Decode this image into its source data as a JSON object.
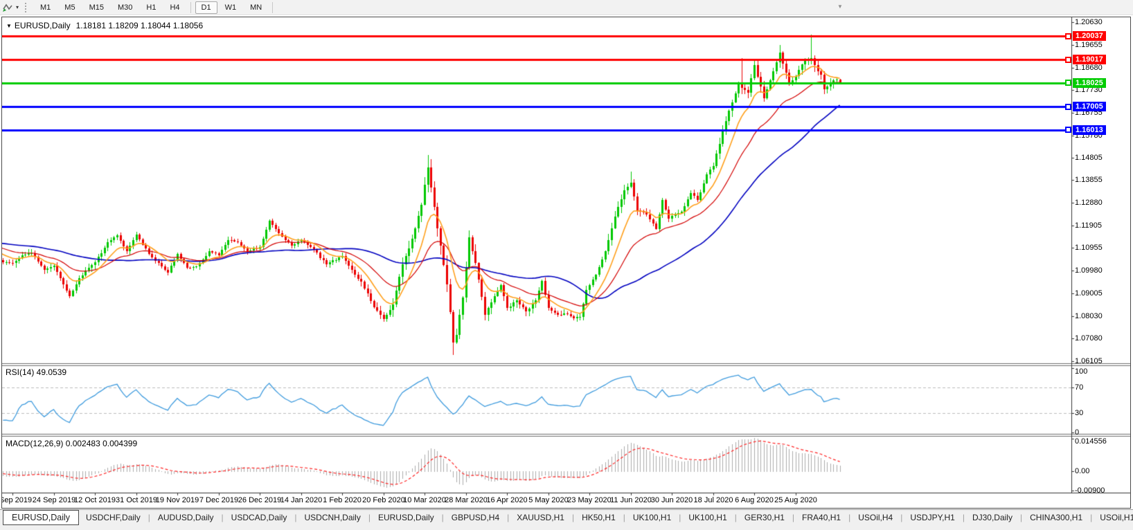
{
  "toolbar": {
    "dropdown_caret": "▾",
    "timeframes": [
      {
        "label": "M1",
        "active": false
      },
      {
        "label": "M5",
        "active": false
      },
      {
        "label": "M15",
        "active": false
      },
      {
        "label": "M30",
        "active": false
      },
      {
        "label": "H1",
        "active": false
      },
      {
        "label": "H4",
        "active": false
      },
      {
        "label": "D1",
        "active": true
      },
      {
        "label": "W1",
        "active": false
      },
      {
        "label": "MN",
        "active": false
      }
    ]
  },
  "chart": {
    "title": {
      "dropdown_marker": "▼",
      "symbol": "EURUSD,Daily",
      "ohlc": "1.18181 1.18209 1.18044 1.18056"
    },
    "scroll_marker": "▼"
  },
  "chart_data": {
    "type": "candlestick",
    "symbol": "EURUSD",
    "timeframe": "Daily",
    "ylim": [
      1.0601,
      1.2081
    ],
    "price_axis_labels": [
      "1.20630",
      "1.19655",
      "1.18680",
      "1.17730",
      "1.16755",
      "1.15780",
      "1.14805",
      "1.13855",
      "1.12880",
      "1.11905",
      "1.10955",
      "1.09980",
      "1.09005",
      "1.08030",
      "1.07080",
      "1.06105"
    ],
    "date_axis_labels": [
      "5 Sep 2019",
      "24 Sep 2019",
      "12 Oct 2019",
      "31 Oct 2019",
      "19 Nov 2019",
      "7 Dec 2019",
      "26 Dec 2019",
      "14 Jan 2020",
      "1 Feb 2020",
      "20 Feb 2020",
      "10 Mar 2020",
      "28 Mar 2020",
      "16 Apr 2020",
      "5 May 2020",
      "23 May 2020",
      "11 Jun 2020",
      "30 Jun 2020",
      "18 Jul 2020",
      "6 Aug 2020",
      "25 Aug 2020"
    ],
    "horizontal_lines": [
      {
        "price": 1.20037,
        "label": "1.20037",
        "color": "#FF0000"
      },
      {
        "price": 1.19017,
        "label": "1.19017",
        "color": "#FF0000"
      },
      {
        "price": 1.18025,
        "label": "1.18025",
        "color": "#00CC00"
      },
      {
        "price": 1.17005,
        "label": "1.17005",
        "color": "#0000FF"
      },
      {
        "price": 1.16013,
        "label": "1.16013",
        "color": "#0000FF"
      }
    ],
    "candle_colors": {
      "bull": "#00C800",
      "bear": "#EC0000"
    },
    "moving_averages": [
      {
        "name": "fast-ma",
        "period": 10,
        "color": "#FF9F1A"
      },
      {
        "name": "medium-ma",
        "period": 25,
        "color": "#D40000"
      },
      {
        "name": "slow-ma",
        "period": 50,
        "color": "#0000C0"
      }
    ],
    "close_anchors": [
      [
        -63,
        1.108
      ],
      [
        -50,
        1.111
      ],
      [
        -40,
        1.114
      ],
      [
        -30,
        1.11
      ],
      [
        -20,
        1.116
      ],
      [
        -10,
        1.109
      ],
      [
        -3,
        1.1035
      ],
      [
        0,
        1.103
      ],
      [
        3,
        1.1063
      ],
      [
        6,
        1.1072
      ],
      [
        10,
        1.1
      ],
      [
        13,
        1.102
      ],
      [
        16,
        1.094
      ],
      [
        18,
        1.089
      ],
      [
        21,
        1.0965
      ],
      [
        26,
        1.1035
      ],
      [
        30,
        1.112
      ],
      [
        33,
        1.115
      ],
      [
        36,
        1.108
      ],
      [
        39,
        1.1152
      ],
      [
        43,
        1.107
      ],
      [
        46,
        1.103
      ],
      [
        49,
        1.099
      ],
      [
        52,
        1.107
      ],
      [
        55,
        1.101
      ],
      [
        58,
        1.1015
      ],
      [
        62,
        1.108
      ],
      [
        65,
        1.1065
      ],
      [
        68,
        1.113
      ],
      [
        71,
        1.112
      ],
      [
        74,
        1.108
      ],
      [
        78,
        1.1098
      ],
      [
        81,
        1.1212
      ],
      [
        84,
        1.116
      ],
      [
        88,
        1.1105
      ],
      [
        91,
        1.1128
      ],
      [
        95,
        1.109
      ],
      [
        99,
        1.1025
      ],
      [
        104,
        1.106
      ],
      [
        108,
        1.098
      ],
      [
        110,
        1.095
      ],
      [
        114,
        1.084
      ],
      [
        117,
        1.079
      ],
      [
        120,
        1.0852
      ],
      [
        123,
        1.1026
      ],
      [
        126,
        1.1135
      ],
      [
        129,
        1.128
      ],
      [
        131,
        1.144
      ],
      [
        133,
        1.1271
      ],
      [
        135,
        1.1105
      ],
      [
        137,
        1.094
      ],
      [
        139,
        1.069
      ],
      [
        140,
        1.0722
      ],
      [
        142,
        1.0883
      ],
      [
        144,
        1.114
      ],
      [
        146,
        1.1031
      ],
      [
        149,
        1.081
      ],
      [
        152,
        1.089
      ],
      [
        154,
        1.0935
      ],
      [
        156,
        1.0839
      ],
      [
        159,
        1.087
      ],
      [
        162,
        1.0823
      ],
      [
        165,
        1.087
      ],
      [
        167,
        1.0955
      ],
      [
        169,
        1.0837
      ],
      [
        172,
        1.081
      ],
      [
        175,
        1.0812
      ],
      [
        177,
        1.0795
      ],
      [
        179,
        1.08
      ],
      [
        181,
        1.0915
      ],
      [
        184,
        1.098
      ],
      [
        187,
        1.108
      ],
      [
        190,
        1.123
      ],
      [
        193,
        1.1341
      ],
      [
        195,
        1.1375
      ],
      [
        197,
        1.1256
      ],
      [
        200,
        1.124
      ],
      [
        203,
        1.1177
      ],
      [
        205,
        1.13
      ],
      [
        207,
        1.122
      ],
      [
        208,
        1.1234
      ],
      [
        211,
        1.125
      ],
      [
        214,
        1.133
      ],
      [
        216,
        1.13
      ],
      [
        219,
        1.1412
      ],
      [
        221,
        1.1446
      ],
      [
        224,
        1.1596
      ],
      [
        227,
        1.172
      ],
      [
        229,
        1.18
      ],
      [
        230,
        1.178
      ],
      [
        232,
        1.1762
      ],
      [
        234,
        1.1878
      ],
      [
        236,
        1.1786
      ],
      [
        237,
        1.1738
      ],
      [
        239,
        1.1813
      ],
      [
        242,
        1.1932
      ],
      [
        245,
        1.1797
      ],
      [
        247,
        1.1833
      ],
      [
        250,
        1.1903
      ],
      [
        252,
        1.191
      ],
      [
        254,
        1.1852
      ],
      [
        255,
        1.1838
      ],
      [
        256,
        1.1776
      ],
      [
        258,
        1.1801
      ],
      [
        259,
        1.1814
      ],
      [
        261,
        1.18056
      ]
    ],
    "volatility_anchors": [
      [
        -63,
        0.0013
      ],
      [
        0,
        0.0016
      ],
      [
        18,
        0.0018
      ],
      [
        40,
        0.0013
      ],
      [
        80,
        0.0011
      ],
      [
        105,
        0.0014
      ],
      [
        115,
        0.0024
      ],
      [
        128,
        0.0042
      ],
      [
        134,
        0.0046
      ],
      [
        142,
        0.0038
      ],
      [
        150,
        0.0026
      ],
      [
        165,
        0.0018
      ],
      [
        180,
        0.0015
      ],
      [
        190,
        0.0028
      ],
      [
        200,
        0.0018
      ],
      [
        214,
        0.0016
      ],
      [
        222,
        0.0024
      ],
      [
        232,
        0.0026
      ],
      [
        244,
        0.0024
      ],
      [
        252,
        0.003
      ],
      [
        261,
        0.0018
      ]
    ],
    "spikes": [
      {
        "i": 18,
        "low": 1.0879
      },
      {
        "i": 131,
        "high": 1.1495
      },
      {
        "i": 139,
        "low": 1.0636
      },
      {
        "i": 195,
        "high": 1.1422
      },
      {
        "i": 230,
        "high": 1.1909
      },
      {
        "i": 242,
        "high": 1.1966
      },
      {
        "i": 252,
        "high": 1.2011
      }
    ],
    "last_candle": {
      "open": 1.18181,
      "high": 1.18209,
      "low": 1.18044,
      "close": 1.18056
    },
    "rsi": {
      "label": "RSI(14) 49.0539",
      "period": 14,
      "levels": [
        70,
        30
      ],
      "axis_labels": [
        {
          "v": 100,
          "t": "100"
        },
        {
          "v": 70,
          "t": "70"
        },
        {
          "v": 30,
          "t": "30"
        },
        {
          "v": 0,
          "t": "0"
        }
      ],
      "color": "#3E9BDE",
      "current": 49.0539
    },
    "macd": {
      "label": "MACD(12,26,9) 0.002483 0.004399",
      "fast": 12,
      "slow": 26,
      "signal": 9,
      "axis_labels": [
        {
          "v": 0.014556,
          "t": "0.014556"
        },
        {
          "v": 0,
          "t": "0.00"
        },
        {
          "v": -0.009,
          "t": "-0.00900"
        }
      ],
      "ylim": [
        -0.0095,
        0.0155
      ],
      "bar_color": "#ABABAB",
      "signal_color": "#FF2222",
      "current_macd": 0.002483,
      "current_signal": 0.004399
    }
  },
  "tabs": {
    "items": [
      {
        "label": "EURUSD,Daily",
        "active": true
      },
      {
        "label": "USDCHF,Daily",
        "active": false
      },
      {
        "label": "AUDUSD,Daily",
        "active": false
      },
      {
        "label": "USDCAD,Daily",
        "active": false
      },
      {
        "label": "USDCNH,Daily",
        "active": false
      },
      {
        "label": "EURUSD,Daily",
        "active": false
      },
      {
        "label": "GBPUSD,H4",
        "active": false
      },
      {
        "label": "XAUUSD,H1",
        "active": false
      },
      {
        "label": "HK50,H1",
        "active": false
      },
      {
        "label": "UK100,H1",
        "active": false
      },
      {
        "label": "UK100,H1",
        "active": false
      },
      {
        "label": "GER30,H1",
        "active": false
      },
      {
        "label": "FRA40,H1",
        "active": false
      },
      {
        "label": "USOil,H4",
        "active": false
      },
      {
        "label": "USDJPY,H1",
        "active": false
      },
      {
        "label": "DJ30,Daily",
        "active": false
      },
      {
        "label": "CHINA300,H1",
        "active": false
      },
      {
        "label": "USOil,H1",
        "active": false
      }
    ],
    "scroll_left": "◂",
    "scroll_right": "▸"
  }
}
